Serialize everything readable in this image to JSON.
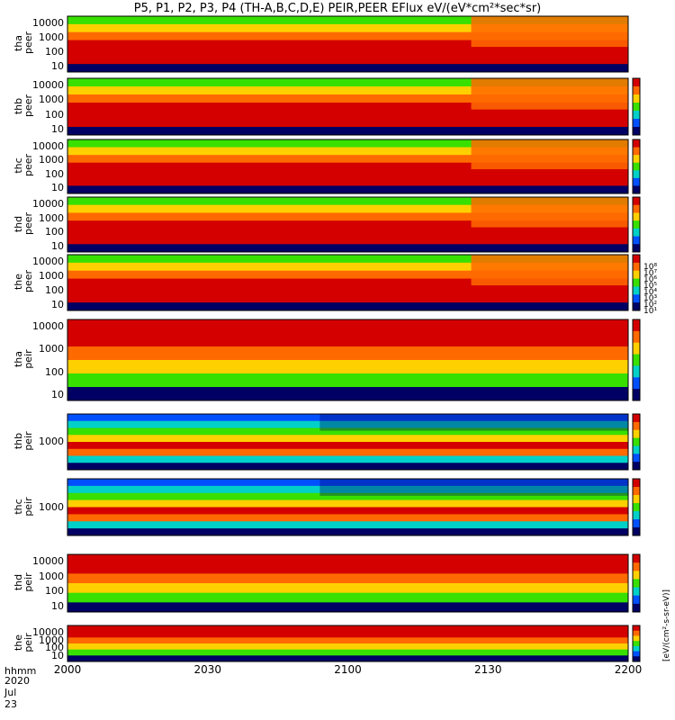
{
  "title": "P5, P1, P2, P3, P4 (TH-A,B,C,D,E) PEIR,PEER EFlux eV/(eV*cm²*sec*sr)",
  "footer": {
    "timefmt": "hhmm",
    "date": "2020 Jul 23"
  },
  "colorbar": {
    "labels": [
      "10⁸",
      "10⁷",
      "10⁶",
      "10⁵",
      "10⁴",
      "10³",
      "10²",
      "10¹"
    ],
    "units": "[eV/(cm²-s-sr-eV)]"
  },
  "colors": {
    "red": "#d40000",
    "orange": "#ff6a00",
    "yellow": "#ffd000",
    "green": "#38e000",
    "cyan": "#00d0c8",
    "blue": "#0050ff",
    "navy": "#000064"
  },
  "chart_data": {
    "type": "heatmap",
    "x_ticks": [
      "2000",
      "2030",
      "2100",
      "2130",
      "2200"
    ],
    "panels": [
      {
        "probe": "tha",
        "species": "peer",
        "y_ticks": [
          "10000",
          "1000",
          "100",
          "10"
        ]
      },
      {
        "probe": "thb",
        "species": "peer",
        "y_ticks": [
          "10000",
          "1000",
          "100",
          "10"
        ]
      },
      {
        "probe": "thc",
        "species": "peer",
        "y_ticks": [
          "10000",
          "1000",
          "100",
          "10"
        ]
      },
      {
        "probe": "thd",
        "species": "peer",
        "y_ticks": [
          "10000",
          "1000",
          "100",
          "10"
        ]
      },
      {
        "probe": "the",
        "species": "peer",
        "y_ticks": [
          "10000",
          "1000",
          "100",
          "10"
        ]
      },
      {
        "probe": "tha",
        "species": "peir",
        "y_ticks": [
          "10000",
          "1000",
          "100",
          "10"
        ]
      },
      {
        "probe": "thb",
        "species": "peir",
        "y_ticks": [
          "1000"
        ]
      },
      {
        "probe": "thc",
        "species": "peir",
        "y_ticks": [
          "1000"
        ]
      },
      {
        "probe": "thd",
        "species": "peir",
        "y_ticks": [
          "10000",
          "1000",
          "100",
          "10"
        ]
      },
      {
        "probe": "the",
        "species": "peir",
        "y_ticks": [
          "10000",
          "1000",
          "100",
          "10"
        ]
      }
    ]
  }
}
